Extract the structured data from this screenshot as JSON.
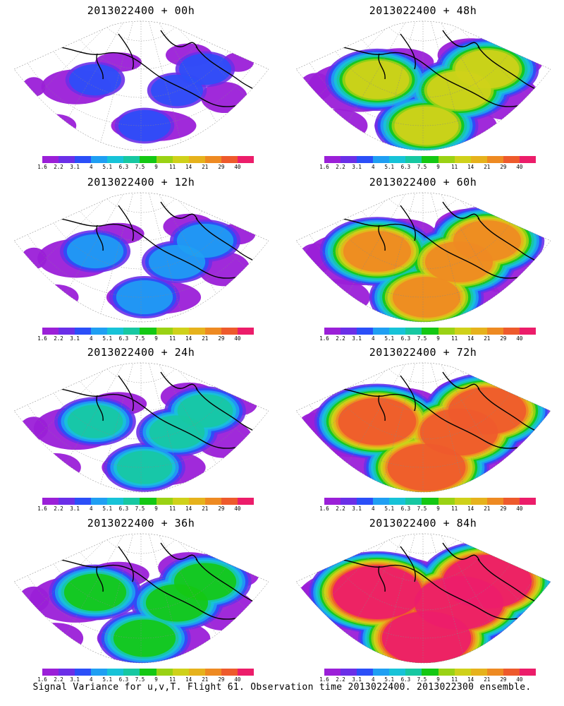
{
  "panels": [
    {
      "title": "2013022400 + 00h"
    },
    {
      "title": "2013022400 + 48h"
    },
    {
      "title": "2013022400 + 12h"
    },
    {
      "title": "2013022400 + 60h"
    },
    {
      "title": "2013022400 + 24h"
    },
    {
      "title": "2013022400 + 72h"
    },
    {
      "title": "2013022400 + 36h"
    },
    {
      "title": "2013022400 + 84h"
    }
  ],
  "colorbar": {
    "colors": [
      "#9b1fd8",
      "#6b2fe8",
      "#2b4ff8",
      "#1f9ff3",
      "#17c3d8",
      "#17c8a2",
      "#14c814",
      "#9ad214",
      "#cfd11a",
      "#e6b21c",
      "#ee8a22",
      "#ee5a2c",
      "#ec1d6a"
    ],
    "tick_labels": [
      "1.6",
      "2.2",
      "3.1",
      "4",
      "5.1",
      "6.3",
      "7.5",
      "9",
      "11",
      "14",
      "21",
      "29",
      "40"
    ]
  },
  "footer": "Signal Variance for u,v,T. Flight 61. Observation time 2013022400. 2013022300 ensemble."
}
